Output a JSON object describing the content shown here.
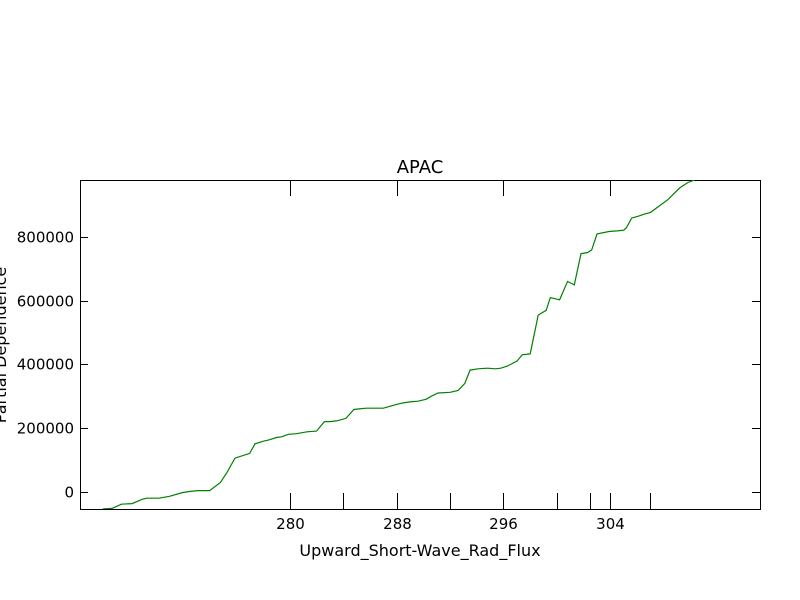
{
  "chart_data": {
    "type": "line",
    "title": "APAC",
    "xlabel": "Upward_Short-Wave_Rad_Flux",
    "ylabel": "Partial Dependence",
    "xlim": [
      264.3,
      315.2
    ],
    "ylim": [
      -55000,
      980000
    ],
    "x_ticks": [
      280,
      288,
      296,
      304
    ],
    "x_tick_labels": [
      "280",
      "288",
      "296",
      "304"
    ],
    "x_minor_ticks": [
      284,
      292,
      300,
      302.5,
      307
    ],
    "y_ticks": [
      0,
      200000,
      400000,
      600000,
      800000
    ],
    "y_tick_labels": [
      "0",
      "200000",
      "400000",
      "600000",
      "800000"
    ],
    "grid": false,
    "colors": {
      "line": "#008000"
    },
    "series": [
      {
        "x": [
          266.0,
          266.7,
          267.4,
          268.2,
          269.0,
          269.3,
          269.8,
          270.2,
          271.0,
          272.0,
          272.5,
          273.1,
          274.0,
          274.8,
          275.3,
          275.9,
          277.0,
          277.4,
          277.8,
          278.0,
          278.5,
          279.0,
          279.4,
          279.9,
          280.5,
          281.3,
          282.0,
          282.6,
          283.0,
          283.5,
          284.2,
          284.8,
          285.2,
          285.7,
          286.4,
          287.0,
          287.5,
          288.1,
          288.4,
          289.0,
          289.6,
          290.2,
          290.6,
          291.1,
          292.0,
          292.6,
          293.1,
          293.5,
          294.1,
          294.8,
          295.4,
          295.8,
          296.3,
          297.0,
          297.4,
          298.0,
          298.6,
          299.2,
          299.5,
          300.2,
          300.8,
          301.3,
          301.8,
          302.3,
          302.6,
          303.0,
          303.3,
          303.9,
          304.5,
          305.0,
          305.2,
          305.6,
          306.1,
          306.5,
          307.0,
          308.3,
          309.2,
          309.8,
          310.3
        ],
        "y": [
          -55000,
          -53000,
          -40000,
          -38000,
          -24000,
          -21000,
          -21000,
          -21000,
          -15000,
          -3000,
          0,
          3000,
          3000,
          28000,
          60000,
          105000,
          120000,
          150000,
          155000,
          158000,
          163000,
          170000,
          172000,
          180000,
          182000,
          188000,
          190000,
          220000,
          220000,
          222000,
          230000,
          258000,
          260000,
          262000,
          262000,
          262000,
          268000,
          275000,
          278000,
          282000,
          284000,
          290000,
          300000,
          310000,
          312000,
          318000,
          340000,
          382000,
          386000,
          388000,
          386000,
          388000,
          395000,
          410000,
          430000,
          433000,
          555000,
          570000,
          610000,
          603000,
          661000,
          650000,
          748000,
          752000,
          760000,
          810000,
          813000,
          818000,
          820000,
          822000,
          830000,
          860000,
          866000,
          872000,
          878000,
          918000,
          955000,
          972000,
          980000
        ]
      }
    ]
  }
}
